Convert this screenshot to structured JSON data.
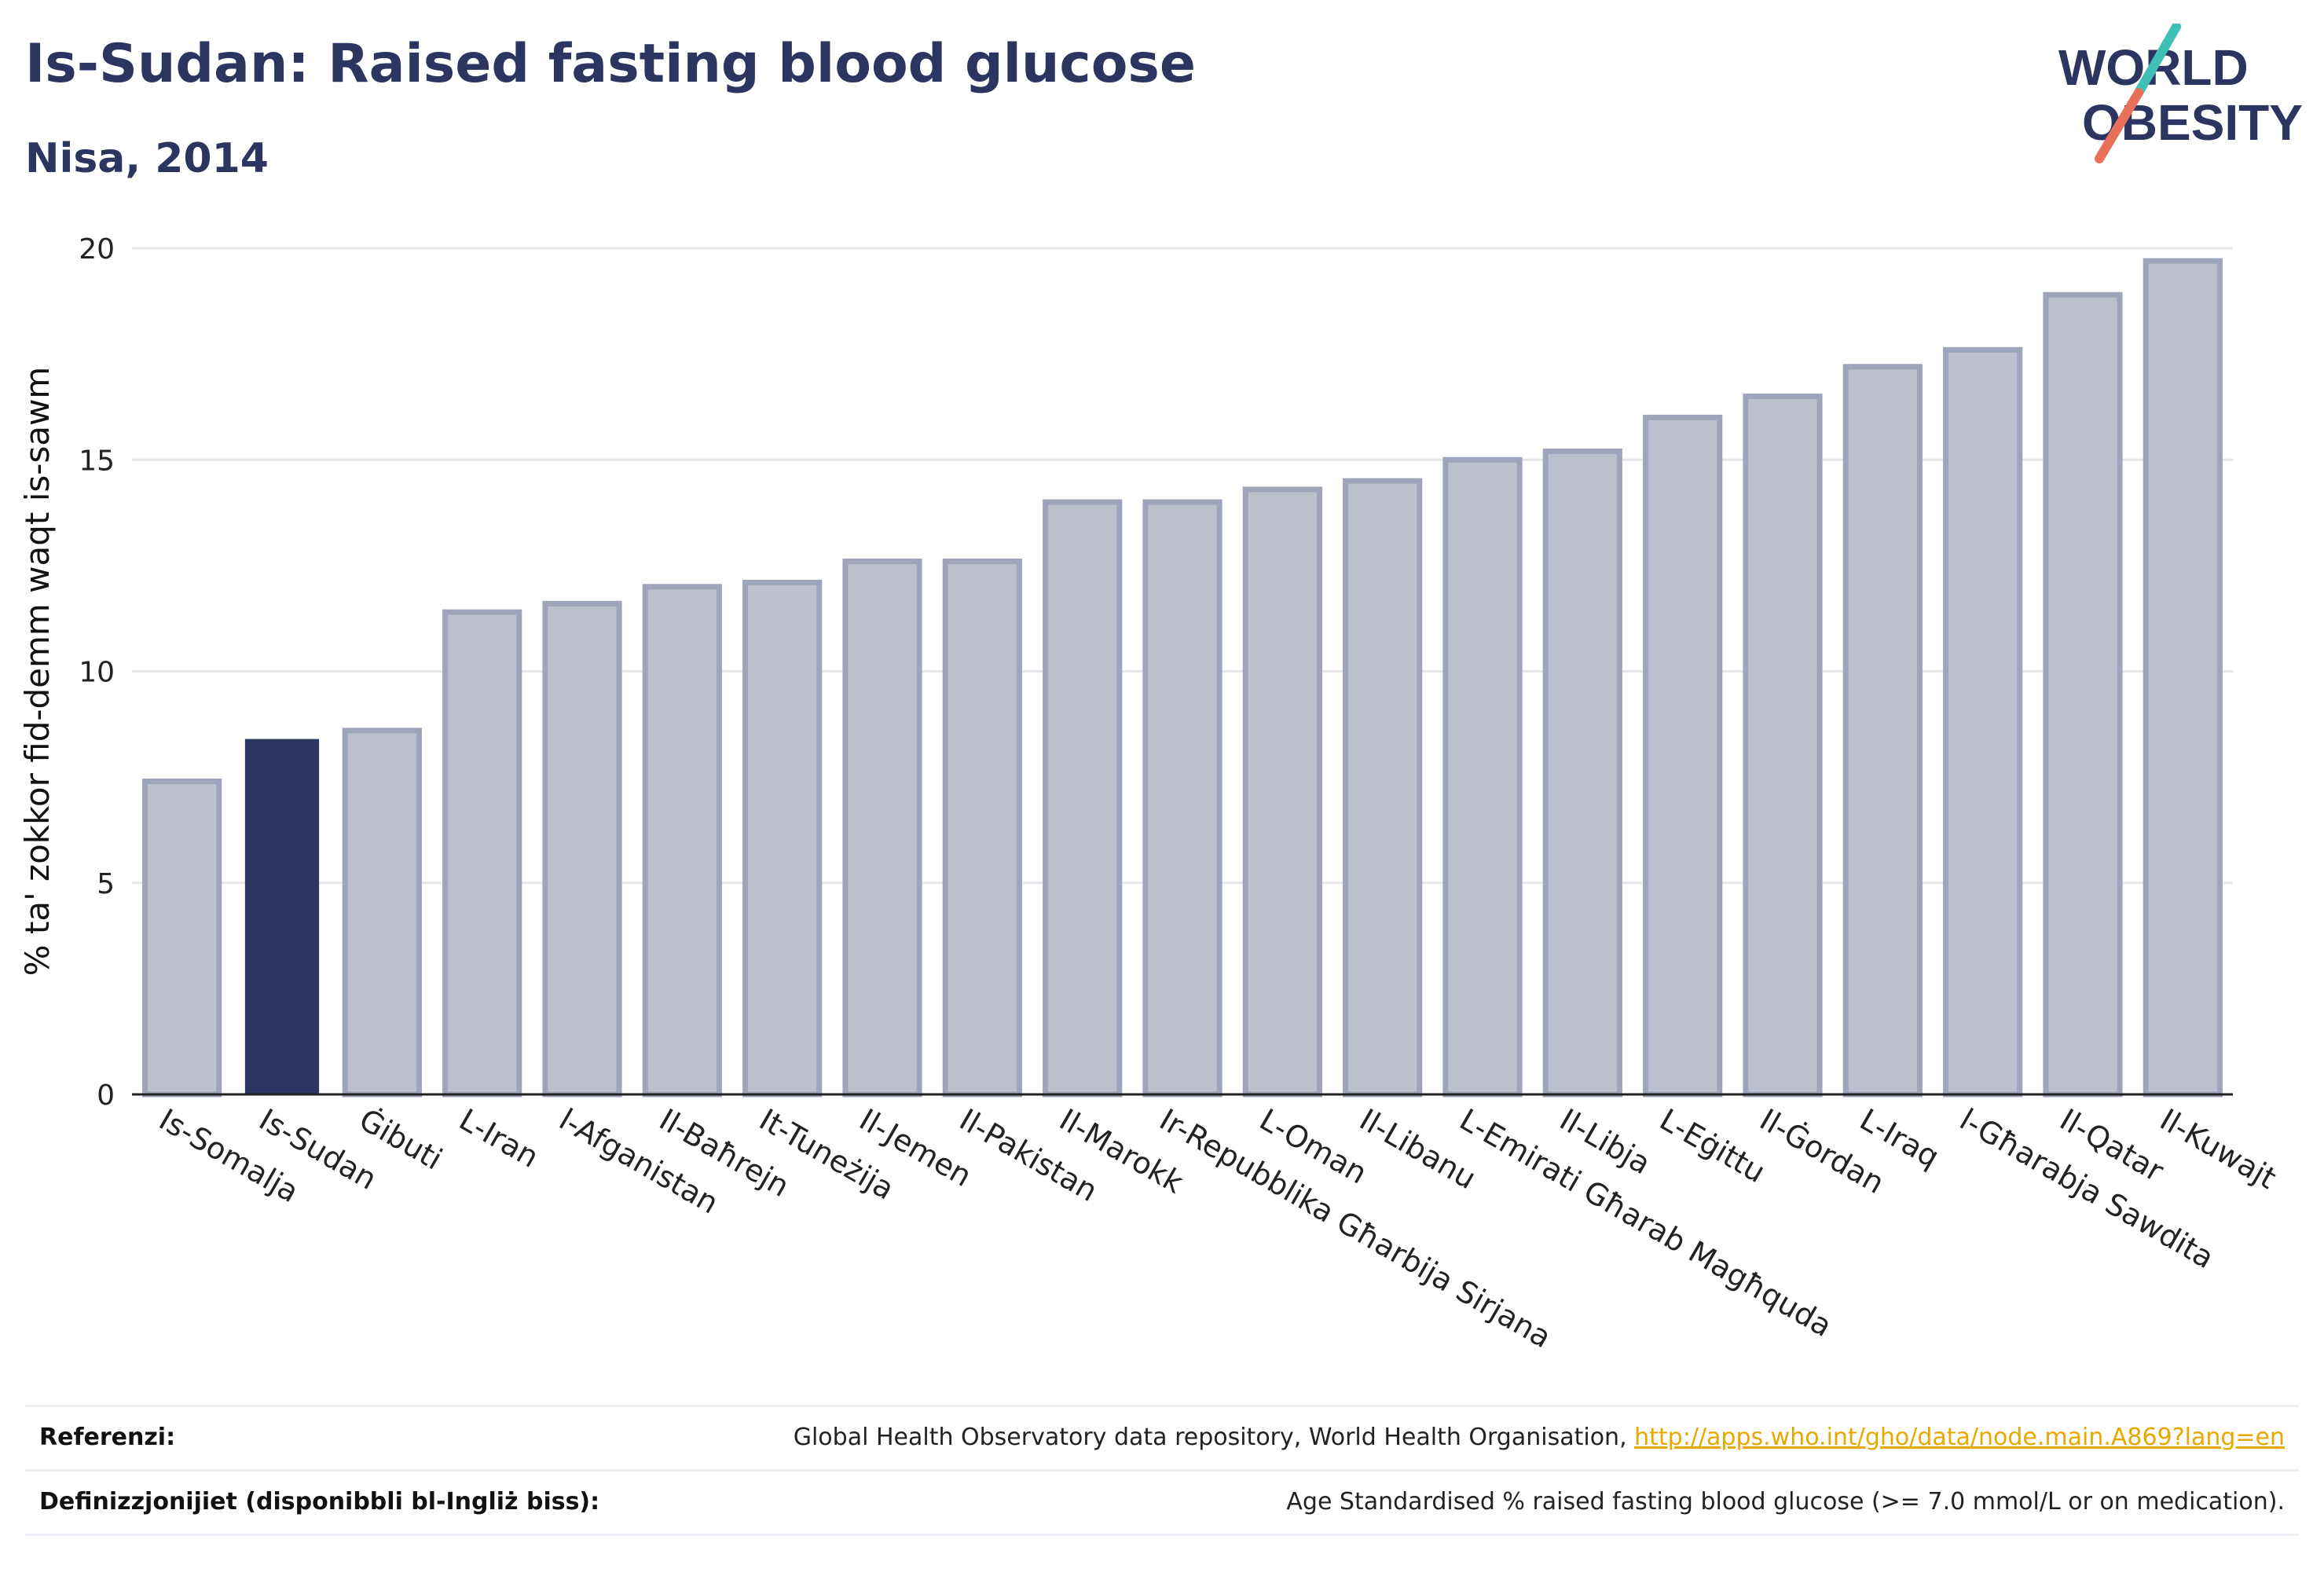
{
  "header": {
    "title": "Is-Sudan: Raised fasting blood glucose",
    "subtitle": "Nisa, 2014"
  },
  "logo": {
    "line1": "WORLD",
    "line2": "OBESITY",
    "colors": {
      "text": "#2b3560",
      "teal": "#3fbfb5",
      "coral": "#e8705a"
    }
  },
  "chart_data": {
    "type": "bar",
    "title": "",
    "ylabel": "% ta' zokkor fid-demm waqt is-sawm",
    "xlabel": "",
    "ylim": [
      0,
      20
    ],
    "yticks": [
      0,
      5,
      10,
      15,
      20
    ],
    "grid": true,
    "legend": "none",
    "highlight_category": "Is-Sudan",
    "colors": {
      "highlight": "#2b3560",
      "bar": "#bcc0cd",
      "bar_border": "#9ea4bb",
      "axis": "#222222",
      "grid": "#e6e6ea"
    },
    "categories": [
      "Is-Somalja",
      "Is-Sudan",
      "Ġibuti",
      "L-Iran",
      "l-Afganistan",
      "Il-Baħrejn",
      "It-Tuneżija",
      "Il-Jemen",
      "Il-Pakistan",
      "Il-Marokk",
      "Ir-Repubblika Għarbija Sirjana",
      "L-Oman",
      "Il-Libanu",
      "L-Emirati Għarab Magħquda",
      "Il-Libja",
      "L-Eġittu",
      "Il-Ġordan",
      "L-Iraq",
      "l-Għarabja Sawdita",
      "Il-Qatar",
      "Il-Kuwajt"
    ],
    "values": [
      7.4,
      8.4,
      8.6,
      11.4,
      11.6,
      12.0,
      12.1,
      12.6,
      12.6,
      14.0,
      14.0,
      14.3,
      14.5,
      15.0,
      15.2,
      16.0,
      16.5,
      17.2,
      17.6,
      18.9,
      19.7
    ]
  },
  "footer": {
    "references_label": "Referenzi:",
    "references_text": "Global Health Observatory data repository, World Health Organisation, ",
    "references_link": "http://apps.who.int/gho/data/node.main.A869?lang=en",
    "definitions_label": "Definizzjonijiet (disponibbli bl-Ingliż biss):",
    "definitions_text": "Age Standardised % raised fasting blood glucose (>= 7.0 mmol/L or on medication)."
  }
}
